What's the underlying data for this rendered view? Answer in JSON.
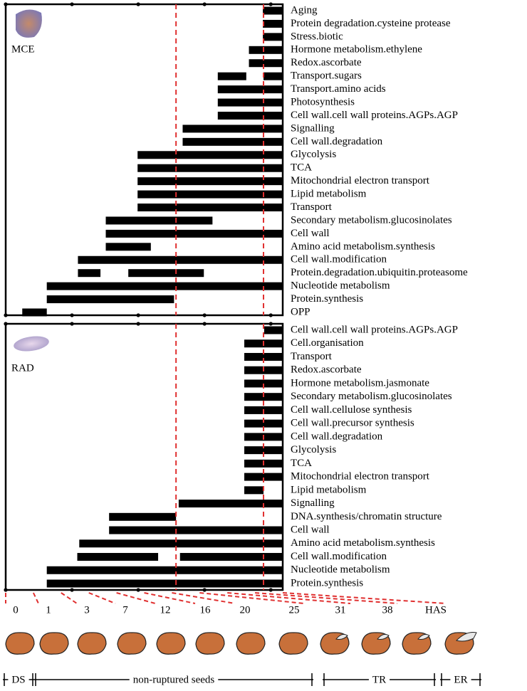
{
  "chart_data": [
    {
      "type": "range-bar",
      "title": "MCE",
      "xlim": [
        0,
        4.18
      ],
      "xticks": [
        0,
        1,
        2,
        3,
        4
      ],
      "markers": [
        2.57,
        3.89
      ],
      "categories": [
        "Aging",
        "Protein degradation.cysteine protease",
        "Stress.biotic",
        "Hormone metabolism.ethylene",
        "Redox.ascorbate",
        "Transport.sugars",
        "Transport.amino acids",
        "Photosynthesis",
        "Cell wall.cell wall proteins.AGPs.AGP",
        "Signalling",
        "Cell wall.degradation",
        "Glycolysis",
        "TCA",
        "Mitochondrial electron transport",
        "Lipid metabolism",
        "Transport",
        "Secondary metabolism.glucosinolates",
        "Cell wall",
        "Amino acid metabolism.synthesis",
        "Cell wall.modification",
        "Protein.degradation.ubiquitin.proteasome",
        "Nucleotide metabolism",
        "Protein.synthesis",
        "OPP"
      ],
      "values": [
        [
          [
            3.88,
            4.18
          ]
        ],
        [
          [
            3.88,
            4.18
          ]
        ],
        [
          [
            3.88,
            4.18
          ]
        ],
        [
          [
            3.67,
            4.18
          ]
        ],
        [
          [
            3.67,
            4.18
          ]
        ],
        [
          [
            3.2,
            3.63
          ],
          [
            3.89,
            4.18
          ]
        ],
        [
          [
            3.2,
            4.18
          ]
        ],
        [
          [
            3.2,
            4.18
          ]
        ],
        [
          [
            3.2,
            4.18
          ]
        ],
        [
          [
            2.67,
            4.18
          ]
        ],
        [
          [
            2.67,
            4.18
          ]
        ],
        [
          [
            1.99,
            4.18
          ]
        ],
        [
          [
            1.99,
            4.18
          ]
        ],
        [
          [
            1.99,
            4.18
          ]
        ],
        [
          [
            1.99,
            4.18
          ]
        ],
        [
          [
            1.99,
            4.18
          ]
        ],
        [
          [
            1.51,
            3.12
          ]
        ],
        [
          [
            1.51,
            4.18
          ]
        ],
        [
          [
            1.51,
            2.19
          ]
        ],
        [
          [
            1.09,
            4.18
          ]
        ],
        [
          [
            1.09,
            1.43
          ],
          [
            1.85,
            2.99
          ]
        ],
        [
          [
            0.62,
            4.18
          ]
        ],
        [
          [
            0.62,
            2.54
          ]
        ],
        [
          [
            0.25,
            0.62
          ]
        ]
      ]
    },
    {
      "type": "range-bar",
      "title": "RAD",
      "xlim": [
        0,
        4.18
      ],
      "xticks": [
        0,
        1,
        2,
        3,
        4
      ],
      "markers": [
        2.57,
        3.89
      ],
      "categories": [
        "Cell wall.cell wall proteins.AGPs.AGP",
        "Cell.organisation",
        "Transport",
        "Redox.ascorbate",
        "Hormone metabolism.jasmonate",
        "Secondary metabolism.glucosinolates",
        "Cell wall.cellulose synthesis",
        "Cell wall.precursor synthesis",
        "Cell wall.degradation",
        "Glycolysis",
        "TCA",
        "Mitochondrial electron transport",
        "Lipid metabolism",
        "Signalling",
        "DNA.synthesis/chromatin structure",
        "Cell wall",
        "Amino acid metabolism.synthesis",
        "Cell wall.modification",
        "Nucleotide metabolism",
        "Protein.synthesis"
      ],
      "values": [
        [
          [
            3.9,
            4.18
          ]
        ],
        [
          [
            3.6,
            4.18
          ]
        ],
        [
          [
            3.6,
            4.18
          ]
        ],
        [
          [
            3.6,
            4.18
          ]
        ],
        [
          [
            3.6,
            4.18
          ]
        ],
        [
          [
            3.6,
            4.18
          ]
        ],
        [
          [
            3.6,
            4.18
          ]
        ],
        [
          [
            3.6,
            4.18
          ]
        ],
        [
          [
            3.6,
            4.18
          ]
        ],
        [
          [
            3.6,
            4.18
          ]
        ],
        [
          [
            3.6,
            4.18
          ]
        ],
        [
          [
            3.6,
            4.18
          ]
        ],
        [
          [
            3.6,
            3.89
          ]
        ],
        [
          [
            2.61,
            4.18
          ]
        ],
        [
          [
            1.56,
            2.57
          ]
        ],
        [
          [
            1.56,
            4.18
          ]
        ],
        [
          [
            1.11,
            4.18
          ]
        ],
        [
          [
            1.08,
            2.3
          ],
          [
            2.63,
            4.18
          ]
        ],
        [
          [
            0.62,
            4.18
          ]
        ],
        [
          [
            0.62,
            4.18
          ]
        ]
      ]
    }
  ],
  "stages": [
    "0",
    "1",
    "3",
    "7",
    "12",
    "16",
    "20",
    "25",
    "31",
    "38",
    "HAS"
  ],
  "phases": [
    "DS",
    "non-ruptured seeds",
    "TR",
    "ER"
  ]
}
